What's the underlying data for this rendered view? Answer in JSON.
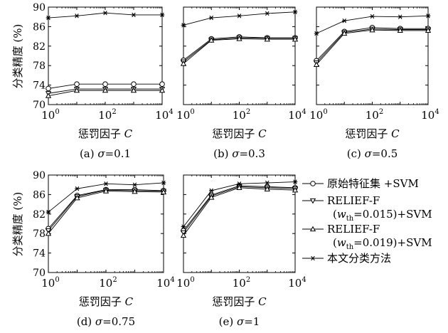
{
  "figure": {
    "ylabel": "分类精度 (%)",
    "xlabel": "惩罚因子 C"
  },
  "legend": {
    "items": [
      {
        "label": "原始特征集 +SVM",
        "marker": "circle"
      },
      {
        "label": "RELIEF-F",
        "label2": "(w_th=0.015)+SVM",
        "marker": "triangle-down"
      },
      {
        "label": "RELIEF-F",
        "label2": "(w_th=0.019)+SVM",
        "marker": "triangle-up"
      },
      {
        "label": "本文分类方法",
        "marker": "star"
      }
    ]
  },
  "chart_data": [
    {
      "type": "line",
      "caption": "(a) σ=0.1",
      "xlabel": "惩罚因子 C",
      "ylabel": "分类精度 (%)",
      "x": [
        1,
        10,
        100,
        1000,
        10000
      ],
      "xscale": "log",
      "xlim": [
        1,
        10000
      ],
      "ylim": [
        70,
        90
      ],
      "yticks": [
        70,
        74,
        78,
        82,
        86,
        90
      ],
      "xticks": [
        "10^0",
        "10^2",
        "10^4"
      ],
      "series": [
        {
          "name": "原始特征集 +SVM",
          "values": [
            73.3,
            74.2,
            74.2,
            74.2,
            74.2
          ]
        },
        {
          "name": "RELIEF-F (w_th=0.015)+SVM",
          "values": [
            72.3,
            73.2,
            73.2,
            73.2,
            73.2
          ]
        },
        {
          "name": "RELIEF-F (w_th=0.019)+SVM",
          "values": [
            71.8,
            72.9,
            72.9,
            72.9,
            72.9
          ]
        },
        {
          "name": "本文分类方法",
          "values": [
            87.8,
            88.2,
            88.8,
            88.4,
            88.4
          ]
        }
      ]
    },
    {
      "type": "line",
      "caption": "(b) σ=0.3",
      "xlabel": "惩罚因子 C",
      "x": [
        1,
        10,
        100,
        1000,
        10000
      ],
      "xscale": "log",
      "xlim": [
        1,
        10000
      ],
      "ylim": [
        70,
        90
      ],
      "yticks": [
        70,
        74,
        78,
        82,
        86,
        90
      ],
      "xticks": [
        "10^0",
        "10^2",
        "10^4"
      ],
      "series": [
        {
          "name": "原始特征集 +SVM",
          "values": [
            79.1,
            83.5,
            83.9,
            83.7,
            83.7
          ]
        },
        {
          "name": "RELIEF-F (w_th=0.015)+SVM",
          "values": [
            78.8,
            83.3,
            83.7,
            83.6,
            83.6
          ]
        },
        {
          "name": "RELIEF-F (w_th=0.019)+SVM",
          "values": [
            78.4,
            83.2,
            83.5,
            83.4,
            83.4
          ]
        },
        {
          "name": "本文分类方法",
          "values": [
            86.3,
            87.8,
            88.2,
            88.7,
            89.0
          ]
        }
      ]
    },
    {
      "type": "line",
      "caption": "(c) σ=0.5",
      "xlabel": "惩罚因子 C",
      "x": [
        1,
        10,
        100,
        1000,
        10000
      ],
      "xscale": "log",
      "xlim": [
        1,
        10000
      ],
      "ylim": [
        70,
        90
      ],
      "yticks": [
        70,
        74,
        78,
        82,
        86,
        90
      ],
      "xticks": [
        "10^0",
        "10^2",
        "10^4"
      ],
      "series": [
        {
          "name": "原始特征集 +SVM",
          "values": [
            79.0,
            85.0,
            85.8,
            85.6,
            85.6
          ]
        },
        {
          "name": "RELIEF-F (w_th=0.015)+SVM",
          "values": [
            78.6,
            84.8,
            85.5,
            85.4,
            85.4
          ]
        },
        {
          "name": "RELIEF-F (w_th=0.019)+SVM",
          "values": [
            78.2,
            84.6,
            85.3,
            85.2,
            85.2
          ]
        },
        {
          "name": "本文分类方法",
          "values": [
            84.6,
            87.2,
            88.1,
            88.0,
            88.2
          ]
        }
      ]
    },
    {
      "type": "line",
      "caption": "(d) σ=0.75",
      "xlabel": "惩罚因子 C",
      "ylabel": "分类精度 (%)",
      "x": [
        1,
        10,
        100,
        1000,
        10000
      ],
      "xscale": "log",
      "xlim": [
        1,
        10000
      ],
      "ylim": [
        70,
        90
      ],
      "yticks": [
        70,
        74,
        78,
        82,
        86,
        90
      ],
      "xticks": [
        "10^0",
        "10^2",
        "10^4"
      ],
      "series": [
        {
          "name": "原始特征集 +SVM",
          "values": [
            79.0,
            85.8,
            87.0,
            87.0,
            86.8
          ]
        },
        {
          "name": "RELIEF-F (w_th=0.015)+SVM",
          "values": [
            78.6,
            85.6,
            86.9,
            86.8,
            86.7
          ]
        },
        {
          "name": "RELIEF-F (w_th=0.019)+SVM",
          "values": [
            78.0,
            85.3,
            86.7,
            86.6,
            86.5
          ]
        },
        {
          "name": "本文分类方法",
          "values": [
            82.4,
            87.2,
            88.2,
            88.0,
            88.4
          ]
        }
      ]
    },
    {
      "type": "line",
      "caption": "(e) σ=1",
      "xlabel": "惩罚因子 C",
      "x": [
        1,
        10,
        100,
        1000,
        10000
      ],
      "xscale": "log",
      "xlim": [
        1,
        10000
      ],
      "ylim": [
        70,
        90
      ],
      "yticks": [
        70,
        74,
        78,
        82,
        86,
        90
      ],
      "xticks": [
        "10^0",
        "10^2",
        "10^4"
      ],
      "series": [
        {
          "name": "原始特征集 +SVM",
          "values": [
            78.6,
            85.9,
            87.8,
            87.6,
            87.4
          ]
        },
        {
          "name": "RELIEF-F (w_th=0.015)+SVM",
          "values": [
            78.2,
            85.7,
            87.6,
            87.4,
            87.2
          ]
        },
        {
          "name": "RELIEF-F (w_th=0.019)+SVM",
          "values": [
            77.6,
            85.4,
            87.4,
            87.1,
            86.9
          ]
        },
        {
          "name": "本文分类方法",
          "values": [
            79.4,
            86.8,
            88.2,
            88.4,
            88.6
          ]
        }
      ]
    }
  ]
}
